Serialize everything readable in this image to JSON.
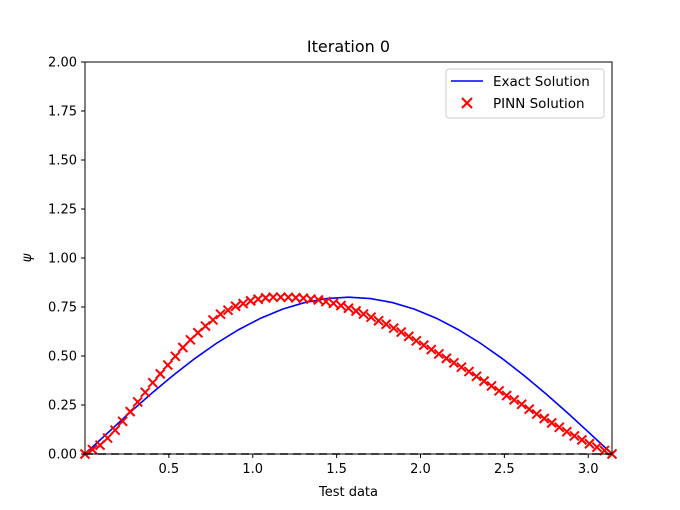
{
  "chart_data": {
    "type": "line",
    "title": "Iteration 0",
    "xlabel": "Test data",
    "ylabel": "ψ",
    "xlim": [
      0.0,
      3.1416
    ],
    "ylim": [
      0.0,
      2.0
    ],
    "x_ticks": [
      0.5,
      1.0,
      1.5,
      2.0,
      2.5,
      3.0
    ],
    "x_tick_labels": [
      "0.5",
      "1.0",
      "1.5",
      "2.0",
      "2.5",
      "3.0"
    ],
    "y_ticks": [
      0.0,
      0.25,
      0.5,
      0.75,
      1.0,
      1.25,
      1.5,
      1.75,
      2.0
    ],
    "y_tick_labels": [
      "0.00",
      "0.25",
      "0.50",
      "0.75",
      "1.00",
      "1.25",
      "1.50",
      "1.75",
      "2.00"
    ],
    "legend_position": "top-right",
    "grid": false,
    "series": [
      {
        "name": "Exact Solution",
        "style": "line",
        "color": "#0000ff",
        "x": [
          0.0,
          0.1309,
          0.2618,
          0.3927,
          0.5236,
          0.6545,
          0.7854,
          0.9163,
          1.0472,
          1.1781,
          1.309,
          1.4399,
          1.5708,
          1.7017,
          1.8326,
          1.9635,
          2.0944,
          2.2253,
          2.3562,
          2.4871,
          2.618,
          2.7489,
          2.8798,
          3.0107,
          3.1416
        ],
        "y": [
          0.0,
          0.1044,
          0.2071,
          0.3061,
          0.4,
          0.487,
          0.5657,
          0.6346,
          0.6928,
          0.7391,
          0.7727,
          0.7932,
          0.8,
          0.7932,
          0.7727,
          0.7391,
          0.6928,
          0.6346,
          0.5657,
          0.487,
          0.4,
          0.3061,
          0.2071,
          0.1044,
          0.0
        ]
      },
      {
        "name": "PINN Solution",
        "style": "markers",
        "marker": "x",
        "color": "#ff0000",
        "x": [
          0.0,
          0.1,
          0.2,
          0.3,
          0.4,
          0.5,
          0.6,
          0.7,
          0.8,
          0.9,
          1.0,
          1.1,
          1.2,
          1.3,
          1.4,
          1.5,
          1.6,
          1.7,
          1.8,
          1.9,
          2.0,
          2.1,
          2.2,
          2.3,
          2.4,
          2.5,
          2.6,
          2.7,
          2.8,
          2.9,
          3.0,
          3.1416
        ],
        "y": [
          0.0,
          0.05,
          0.14,
          0.25,
          0.36,
          0.46,
          0.56,
          0.64,
          0.71,
          0.755,
          0.785,
          0.8,
          0.8,
          0.795,
          0.785,
          0.765,
          0.735,
          0.7,
          0.66,
          0.615,
          0.565,
          0.515,
          0.465,
          0.415,
          0.36,
          0.305,
          0.255,
          0.2,
          0.15,
          0.1,
          0.055,
          0.0
        ]
      },
      {
        "name": "",
        "style": "dashed",
        "color": "#000000",
        "x": [
          0.0,
          3.1416
        ],
        "y": [
          0.0,
          0.0
        ]
      }
    ]
  }
}
